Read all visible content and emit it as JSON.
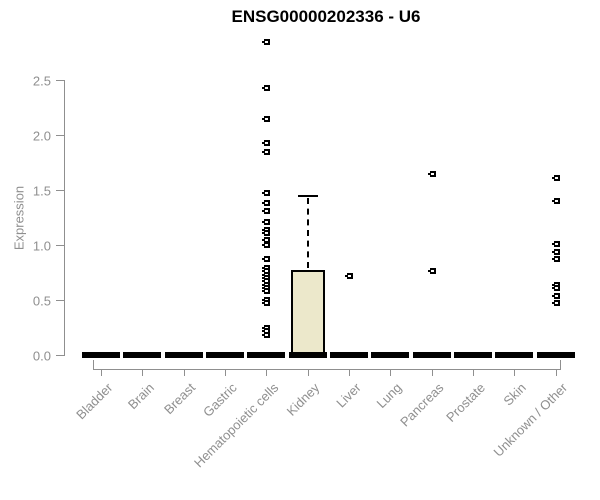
{
  "title": "ENSG00000202336 - U6",
  "chart_data": {
    "type": "boxplot",
    "title": "ENSG00000202336 - U6",
    "xlabel": "",
    "ylabel": "Expression",
    "ylim": [
      0,
      2.9
    ],
    "grid": false,
    "legend_position": "none",
    "ytick_labels": [
      "0.0",
      "0.5",
      "1.0",
      "1.5",
      "2.0",
      "2.5"
    ],
    "ytick_values": [
      0,
      0.5,
      1,
      1.5,
      2,
      2.5
    ],
    "categories": [
      "Bladder",
      "Brain",
      "Breast",
      "Gastric",
      "Hematopoietic cells",
      "Kidney",
      "Liver",
      "Lung",
      "Pancreas",
      "Prostate",
      "Skin",
      "Unknown / Other"
    ],
    "boxes": [
      {
        "category": "Bladder",
        "q1": 0,
        "median": 0,
        "q3": 0,
        "whisker_low": 0,
        "whisker_high": 0,
        "outliers": []
      },
      {
        "category": "Brain",
        "q1": 0,
        "median": 0,
        "q3": 0,
        "whisker_low": 0,
        "whisker_high": 0,
        "outliers": []
      },
      {
        "category": "Breast",
        "q1": 0,
        "median": 0,
        "q3": 0,
        "whisker_low": 0,
        "whisker_high": 0,
        "outliers": []
      },
      {
        "category": "Gastric",
        "q1": 0,
        "median": 0,
        "q3": 0,
        "whisker_low": 0,
        "whisker_high": 0,
        "outliers": []
      },
      {
        "category": "Hematopoietic cells",
        "q1": 0,
        "median": 0,
        "q3": 0,
        "whisker_low": 0,
        "whisker_high": 0,
        "outliers": [
          2.85,
          2.43,
          2.15,
          1.93,
          1.85,
          1.47,
          1.38,
          1.31,
          1.21,
          1.14,
          1.11,
          1.05,
          1.0,
          0.87,
          0.79,
          0.76,
          0.73,
          0.7,
          0.67,
          0.64,
          0.61,
          0.58,
          0.5,
          0.47,
          0.25,
          0.22,
          0.18
        ]
      },
      {
        "category": "Kidney",
        "q1": 0,
        "median": 0,
        "q3": 0.77,
        "whisker_low": 0,
        "whisker_high": 1.45,
        "outliers": []
      },
      {
        "category": "Liver",
        "q1": 0,
        "median": 0,
        "q3": 0,
        "whisker_low": 0,
        "whisker_high": 0,
        "outliers": [
          0.72
        ]
      },
      {
        "category": "Lung",
        "q1": 0,
        "median": 0,
        "q3": 0,
        "whisker_low": 0,
        "whisker_high": 0,
        "outliers": []
      },
      {
        "category": "Pancreas",
        "q1": 0,
        "median": 0,
        "q3": 0,
        "whisker_low": 0,
        "whisker_high": 0,
        "outliers": [
          1.65,
          0.76
        ]
      },
      {
        "category": "Prostate",
        "q1": 0,
        "median": 0,
        "q3": 0,
        "whisker_low": 0,
        "whisker_high": 0,
        "outliers": []
      },
      {
        "category": "Skin",
        "q1": 0,
        "median": 0,
        "q3": 0,
        "whisker_low": 0,
        "whisker_high": 0,
        "outliers": []
      },
      {
        "category": "Unknown / Other",
        "q1": 0,
        "median": 0,
        "q3": 0,
        "whisker_low": 0,
        "whisker_high": 0,
        "outliers": [
          1.61,
          1.4,
          1.01,
          0.94,
          0.87,
          0.64,
          0.61,
          0.54,
          0.47
        ]
      }
    ],
    "colors": {
      "box_fill": "#ece8cb",
      "box_border": "#000000",
      "outlier": "#000000",
      "axis": "#8f8f8f",
      "tick_text": "#8f8f8f",
      "title_text": "#000000"
    }
  }
}
